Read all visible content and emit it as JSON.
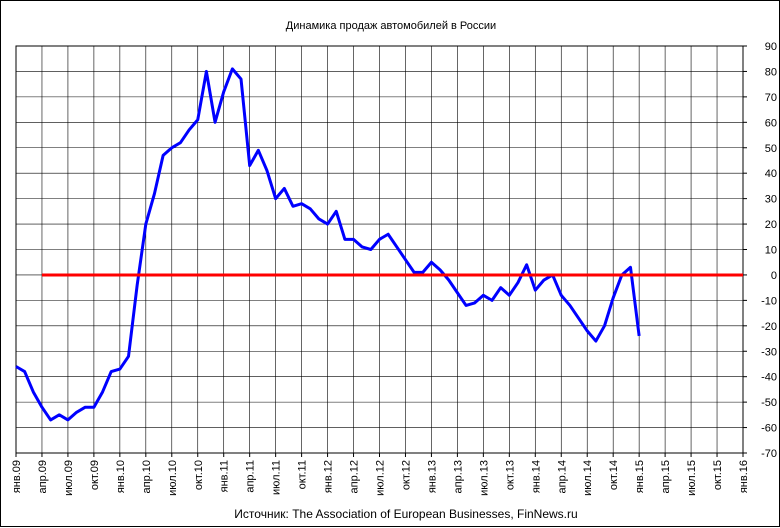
{
  "chart_data": {
    "type": "line",
    "title": "Динамика продаж автомобилей в России",
    "source": "Источник: The Association of European Businesses, FinNews.ru",
    "xlabel": "",
    "ylabel": "",
    "ylim": [
      -70,
      90
    ],
    "yticks": [
      -70,
      -60,
      -50,
      -40,
      -30,
      -20,
      -10,
      0,
      10,
      20,
      30,
      40,
      50,
      60,
      70,
      80,
      90
    ],
    "y_axis_position": "right",
    "grid": true,
    "x_tick_labels": [
      "янв.09",
      "апр.09",
      "июл.09",
      "окт.09",
      "янв.10",
      "апр.10",
      "июл.10",
      "окт.10",
      "янв.11",
      "апр.11",
      "июл.11",
      "окт.11",
      "янв.12",
      "апр.12",
      "июл.12",
      "окт.12",
      "янв.13",
      "апр.13",
      "июл.13",
      "окт.13",
      "янв.14",
      "апр.14",
      "июл.14",
      "окт.14",
      "янв.15",
      "апр.15",
      "июл.15",
      "окт.15",
      "янв.16"
    ],
    "series": [
      {
        "color": "#0000ff",
        "start": "янв.09",
        "values": [
          -36,
          -38,
          -46,
          -52,
          -57,
          -55,
          -57,
          -54,
          -52,
          -52,
          -46,
          -38,
          -37,
          -32,
          -4,
          20,
          32,
          47,
          50,
          52,
          57,
          61,
          80,
          60,
          72,
          81,
          77,
          43,
          49,
          41,
          30,
          34,
          27,
          28,
          26,
          22,
          20,
          25,
          14,
          14,
          11,
          10,
          14,
          16,
          11,
          6,
          1,
          1,
          5,
          2,
          -2,
          -7,
          -12,
          -11,
          -8,
          -10,
          -5,
          -8,
          -3,
          4,
          -6,
          -2,
          0,
          -8,
          -12,
          -17,
          -22,
          -26,
          -20,
          -9,
          0,
          3,
          -24
        ]
      },
      {
        "color": "#ff0000",
        "start": "апр.09",
        "end": "янв.16",
        "values": [
          0,
          0
        ]
      }
    ]
  }
}
